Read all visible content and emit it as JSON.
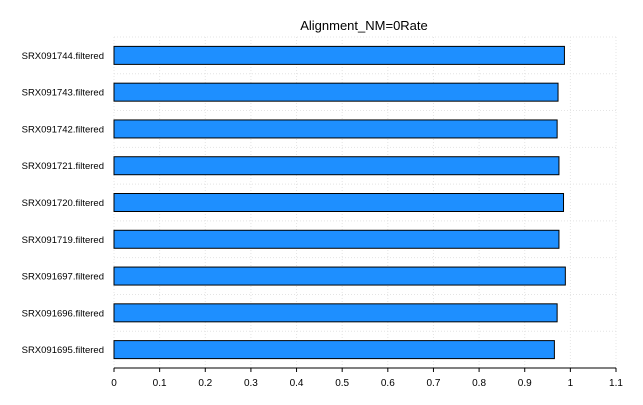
{
  "chart_data": {
    "type": "bar",
    "orientation": "horizontal",
    "title": "Alignment_NM=0Rate",
    "xlabel": "",
    "ylabel": "",
    "categories": [
      "SRX091744.filtered",
      "SRX091743.filtered",
      "SRX091742.filtered",
      "SRX091721.filtered",
      "SRX091720.filtered",
      "SRX091719.filtered",
      "SRX091697.filtered",
      "SRX091696.filtered",
      "SRX091695.filtered"
    ],
    "values": [
      0.987,
      0.973,
      0.971,
      0.975,
      0.985,
      0.975,
      0.989,
      0.971,
      0.965
    ],
    "xlim": [
      0,
      1.1
    ],
    "xticks": [
      "0",
      "0.1",
      "0.2",
      "0.3",
      "0.4",
      "0.5",
      "0.6",
      "0.7",
      "0.8",
      "0.9",
      "1",
      "1.1"
    ],
    "grid": true,
    "legend": "none",
    "bar_color": "#1e8fff",
    "bar_edge_color": "#000000"
  }
}
